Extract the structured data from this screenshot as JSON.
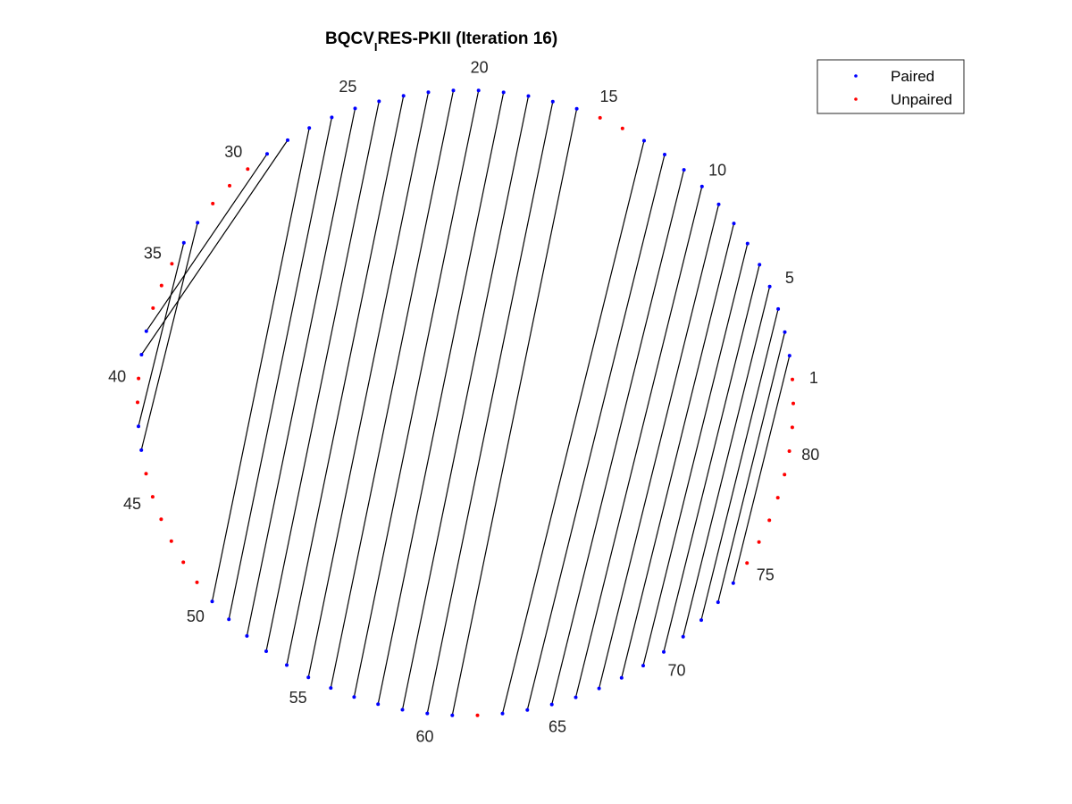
{
  "title": {
    "prefix": "BQCV",
    "subscript": "I",
    "suffix": "RES-PKII (Iteration 16)"
  },
  "legend": {
    "placement": "top-right",
    "entries": [
      {
        "label": "Paired",
        "color": "#0000ff"
      },
      {
        "label": "Unpaired",
        "color": "#ff0000"
      }
    ]
  },
  "chart_data": {
    "type": "arc-diagram",
    "num_nodes": 82,
    "direction": "counterclockwise",
    "paired_color": "#0000ff",
    "unpaired_color": "#ff0000",
    "chord_color": "#000000",
    "node_labels": [
      "1",
      "5",
      "10",
      "15",
      "20",
      "25",
      "30",
      "35",
      "40",
      "45",
      "50",
      "55",
      "60",
      "65",
      "70",
      "75",
      "80"
    ],
    "labeled_indices": [
      1,
      5,
      10,
      15,
      20,
      25,
      30,
      35,
      40,
      45,
      50,
      55,
      60,
      65,
      70,
      75,
      80
    ],
    "pairs": [
      [
        2,
        74
      ],
      [
        3,
        73
      ],
      [
        4,
        72
      ],
      [
        5,
        71
      ],
      [
        6,
        70
      ],
      [
        7,
        69
      ],
      [
        8,
        68
      ],
      [
        9,
        67
      ],
      [
        10,
        66
      ],
      [
        11,
        65
      ],
      [
        12,
        64
      ],
      [
        13,
        63
      ],
      [
        16,
        61
      ],
      [
        17,
        60
      ],
      [
        18,
        59
      ],
      [
        19,
        58
      ],
      [
        20,
        57
      ],
      [
        21,
        56
      ],
      [
        22,
        55
      ],
      [
        23,
        54
      ],
      [
        24,
        53
      ],
      [
        25,
        52
      ],
      [
        26,
        51
      ],
      [
        27,
        50
      ],
      [
        28,
        39
      ],
      [
        29,
        38
      ],
      [
        33,
        43
      ],
      [
        34,
        42
      ]
    ]
  }
}
